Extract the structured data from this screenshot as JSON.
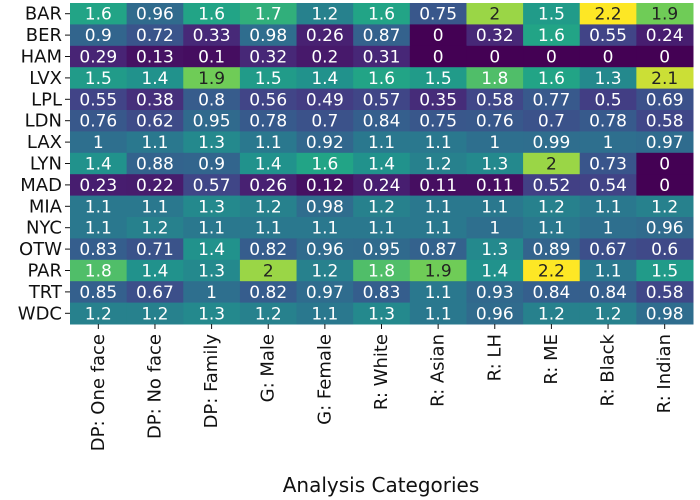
{
  "chart_data": {
    "type": "heatmap",
    "title": "",
    "xlabel": "Analysis Categories",
    "ylabel": "",
    "colormap": "viridis",
    "value_range": [
      0,
      2.2
    ],
    "rows": [
      "BAR",
      "BER",
      "HAM",
      "LVX",
      "LPL",
      "LDN",
      "LAX",
      "LYN",
      "MAD",
      "MIA",
      "NYC",
      "OTW",
      "PAR",
      "TRT",
      "WDC"
    ],
    "columns": [
      "DP: One face",
      "DP: No face",
      "DP: Family",
      "G: Male",
      "G: Female",
      "R: White",
      "R: Asian",
      "R: LH",
      "R: ME",
      "R: Black",
      "R: Indian"
    ],
    "values": [
      [
        1.6,
        0.96,
        1.6,
        1.7,
        1.2,
        1.6,
        0.75,
        2,
        1.5,
        2.2,
        1.9
      ],
      [
        0.9,
        0.72,
        0.33,
        0.98,
        0.26,
        0.87,
        0,
        0.32,
        1.6,
        0.55,
        0.24
      ],
      [
        0.29,
        0.13,
        0.1,
        0.32,
        0.2,
        0.31,
        0,
        0,
        0,
        0,
        0
      ],
      [
        1.5,
        1.4,
        1.9,
        1.5,
        1.4,
        1.6,
        1.5,
        1.8,
        1.6,
        1.3,
        2.1
      ],
      [
        0.55,
        0.38,
        0.8,
        0.56,
        0.49,
        0.57,
        0.35,
        0.58,
        0.77,
        0.5,
        0.69
      ],
      [
        0.76,
        0.62,
        0.95,
        0.78,
        0.7,
        0.84,
        0.75,
        0.76,
        0.7,
        0.78,
        0.58
      ],
      [
        1,
        1.1,
        1.3,
        1.1,
        0.92,
        1.1,
        1.1,
        1,
        0.99,
        1,
        0.97
      ],
      [
        1.4,
        0.88,
        0.9,
        1.4,
        1.6,
        1.4,
        1.2,
        1.3,
        2,
        0.73,
        0
      ],
      [
        0.23,
        0.22,
        0.57,
        0.26,
        0.12,
        0.24,
        0.11,
        0.11,
        0.52,
        0.54,
        0
      ],
      [
        1.1,
        1.1,
        1.3,
        1.2,
        0.98,
        1.2,
        1.1,
        1.1,
        1.2,
        1.1,
        1.2
      ],
      [
        1.1,
        1.2,
        1.1,
        1.1,
        1.1,
        1.1,
        1.1,
        1,
        1.1,
        1,
        0.96
      ],
      [
        0.83,
        0.71,
        1.4,
        0.82,
        0.96,
        0.95,
        0.87,
        1.3,
        0.89,
        0.67,
        0.6
      ],
      [
        1.8,
        1.4,
        1.3,
        2,
        1.2,
        1.8,
        1.9,
        1.4,
        2.2,
        1.1,
        1.5
      ],
      [
        0.85,
        0.67,
        1,
        0.82,
        0.97,
        0.83,
        1.1,
        0.93,
        0.84,
        0.84,
        0.58
      ],
      [
        1.2,
        1.2,
        1.3,
        1.2,
        1.1,
        1.3,
        1.1,
        0.96,
        1.2,
        1.2,
        0.98
      ]
    ]
  }
}
